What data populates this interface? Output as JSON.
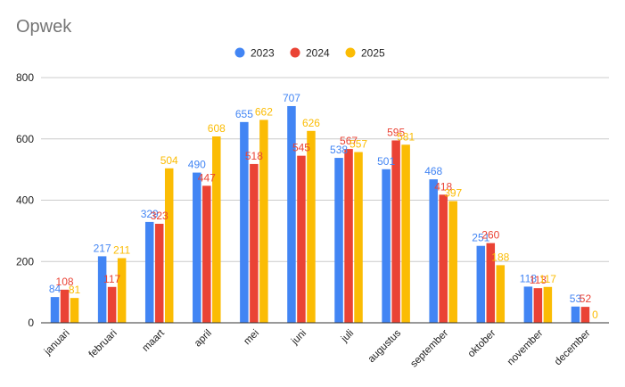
{
  "chart_data": {
    "type": "bar",
    "title": "Opwek",
    "xlabel": "",
    "ylabel": "",
    "ylim": [
      0,
      800
    ],
    "yticks": [
      0,
      200,
      400,
      600,
      800
    ],
    "grid": true,
    "legend_position": "top-center",
    "categories": [
      "januari",
      "februari",
      "maart",
      "april",
      "mei",
      "juni",
      "juli",
      "augustus",
      "september",
      "oktober",
      "november",
      "december"
    ],
    "series": [
      {
        "name": "2023",
        "color": "#4285f4",
        "values": [
          84,
          217,
          329,
          490,
          655,
          707,
          538,
          501,
          468,
          251,
          118,
          53
        ],
        "labels": [
          "84",
          "217",
          "329",
          "490",
          "655",
          "707",
          "538",
          "501",
          "468",
          "251",
          "118",
          "53"
        ]
      },
      {
        "name": "2024",
        "color": "#ea4335",
        "values": [
          108,
          117,
          323,
          447,
          518,
          545,
          567,
          595,
          418,
          260,
          113,
          52
        ],
        "labels": [
          "108",
          "117",
          "323",
          "447",
          "518",
          "545",
          "567",
          "595",
          "418",
          "260",
          "113",
          "52"
        ]
      },
      {
        "name": "2025",
        "color": "#fbbc04",
        "values": [
          81,
          211,
          504,
          608,
          662,
          626,
          557,
          581,
          397,
          188,
          117,
          0
        ],
        "labels": [
          "81",
          "211",
          "504",
          "608",
          "662",
          "626",
          "557",
          "581",
          "397",
          "188",
          "117",
          "0"
        ]
      }
    ]
  }
}
